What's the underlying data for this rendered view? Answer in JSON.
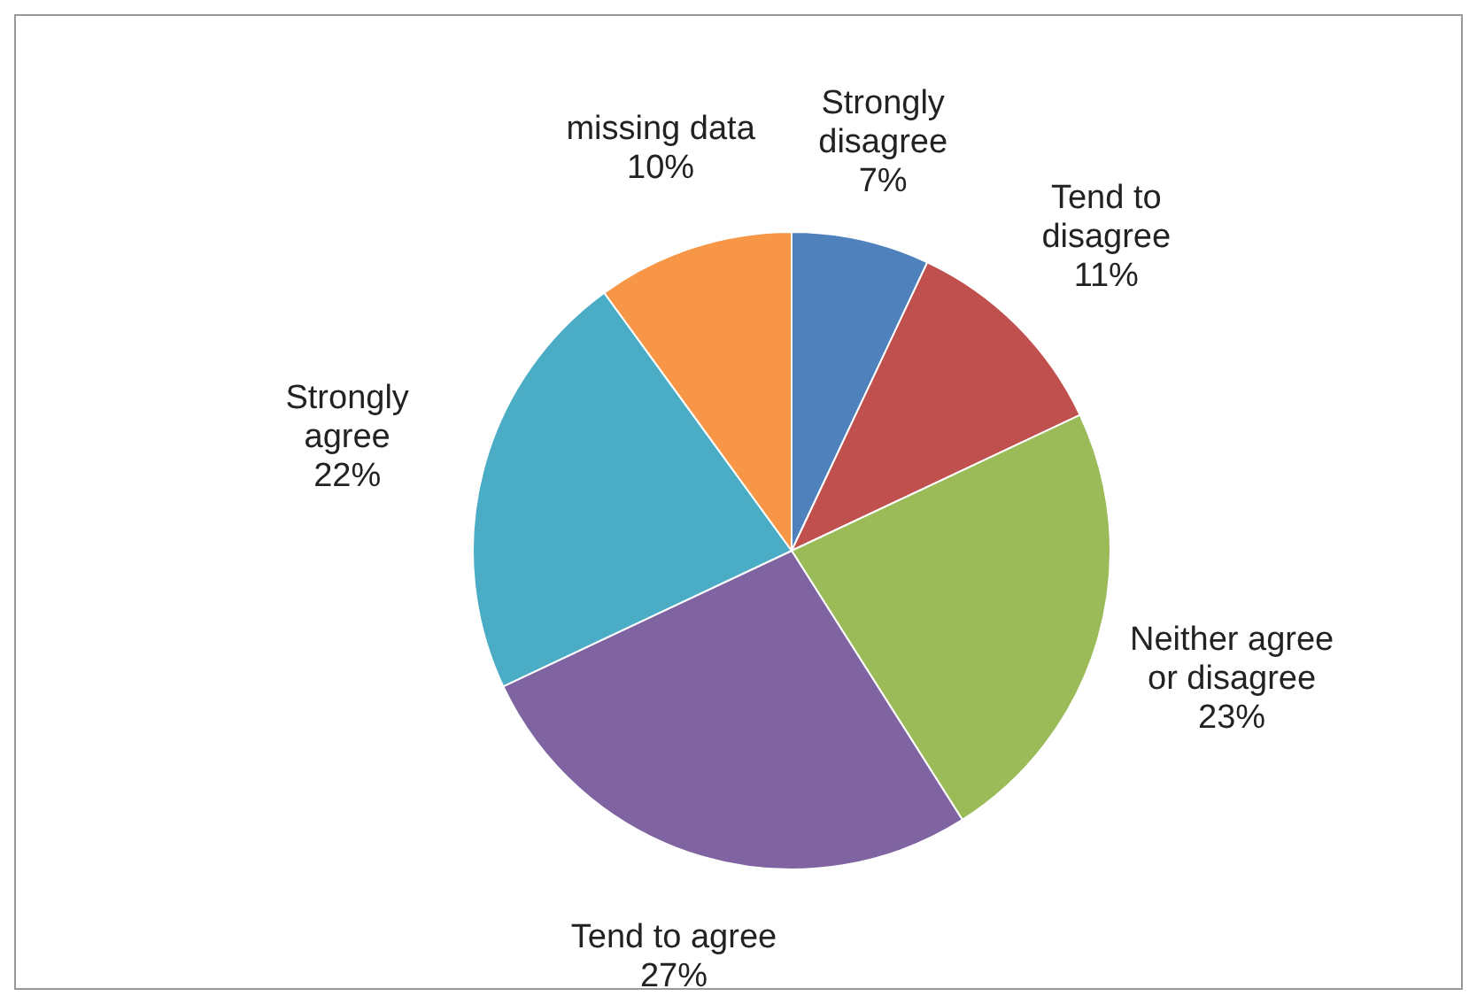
{
  "chart_data": {
    "type": "pie",
    "categories": [
      "Strongly disagree",
      "Tend to disagree",
      "Neither agree or disagree",
      "Tend to agree",
      "Strongly agree",
      "missing data"
    ],
    "values": [
      7,
      11,
      23,
      27,
      22,
      10
    ],
    "value_labels": [
      "7%",
      "11%",
      "23%",
      "27%",
      "22%",
      "10%"
    ],
    "colors": [
      "#4f81bd",
      "#c0504d",
      "#9bbb59",
      "#8064a2",
      "#4bacc6",
      "#f79646"
    ],
    "legend": false
  }
}
